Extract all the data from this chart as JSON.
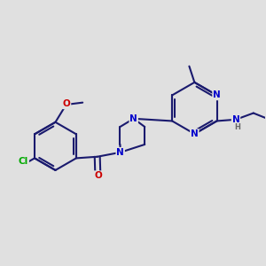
{
  "background_color": "#e0e0e0",
  "bond_color": "#1a1a6e",
  "bond_width": 1.5,
  "atom_colors": {
    "N": "#0000cc",
    "O": "#cc0000",
    "Cl": "#00aa00",
    "C": "#1a1a6e",
    "H": "#666666"
  },
  "font_size": 7.5,
  "fig_size": [
    3.0,
    3.0
  ],
  "dpi": 100
}
